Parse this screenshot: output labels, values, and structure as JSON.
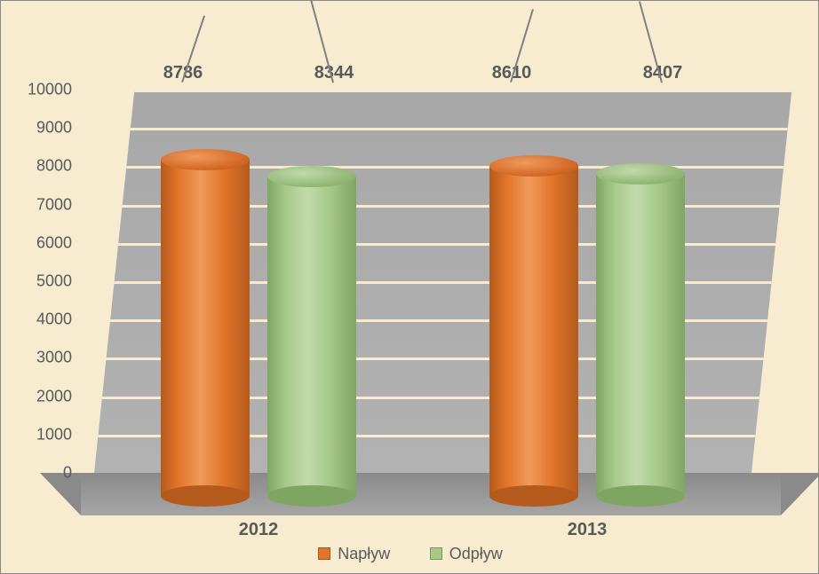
{
  "chart": {
    "type": "bar3d-cylinder",
    "background_color": "#f7ecd0",
    "plot_wall_color": "#b0b0b0",
    "floor_color": "#898989",
    "gridline_color": "#f7ecd0",
    "yaxis": {
      "min": 0,
      "max": 10000,
      "step": 1000,
      "label_color": "#595959",
      "label_fontsize": 18
    },
    "xaxis": {
      "label_color": "#595959",
      "label_fontsize": 20
    },
    "categories": [
      "2012",
      "2013"
    ],
    "series": [
      {
        "name": "Napływ",
        "color_main": "#e3752b",
        "color_light": "#f09a5c",
        "color_dark": "#b55a1d",
        "color_top": "#d16522",
        "values": [
          8786,
          8610
        ]
      },
      {
        "name": "Odpływ",
        "color_main": "#a6c98a",
        "color_light": "#c1dbaa",
        "color_dark": "#7fa562",
        "color_top": "#8fb473",
        "values": [
          8344,
          8407
        ]
      }
    ],
    "legend": {
      "napływ_color": "#e3752b",
      "odpływ_color": "#a6c98a"
    }
  }
}
